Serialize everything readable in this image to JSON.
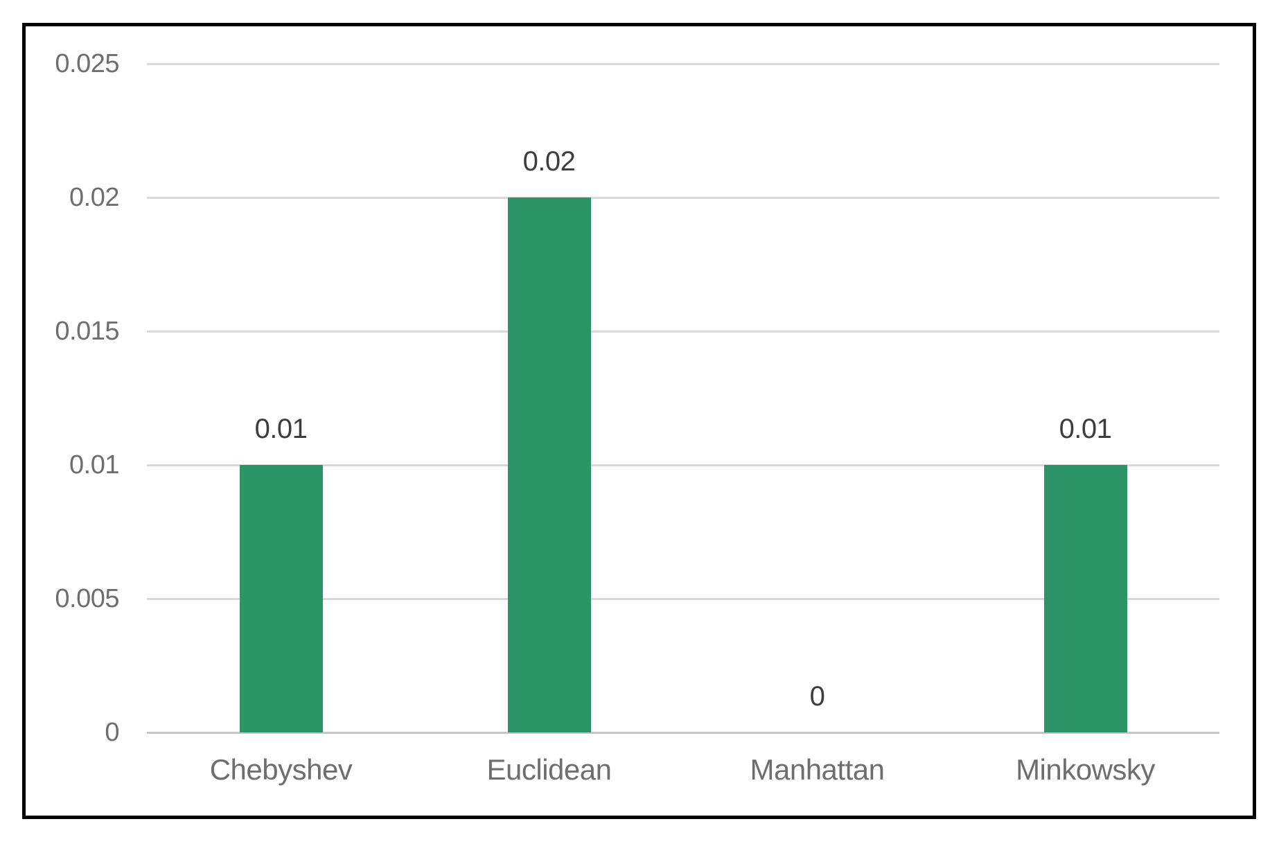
{
  "chart_data": {
    "type": "bar",
    "categories": [
      "Chebyshev",
      "Euclidean",
      "Manhattan",
      "Minkowsky"
    ],
    "values": [
      0.01,
      0.02,
      0,
      0.01
    ],
    "data_labels": [
      "0.01",
      "0.02",
      "0",
      "0.01"
    ],
    "ytick_labels": [
      "0.025",
      "0.02",
      "0.015",
      "0.01",
      "0.005",
      "0"
    ],
    "yticks": [
      0.025,
      0.02,
      0.015,
      0.01,
      0.005,
      0
    ],
    "ylim": [
      0,
      0.025
    ],
    "title": "",
    "xlabel": "",
    "ylabel": "",
    "grid": true,
    "legend_position": "none",
    "bar_color": "#2D9468",
    "gridline_color": "#d9d9d9",
    "axis_line_color": "#c6c6c6",
    "axis_label_color": "#6e6e6e",
    "data_label_color": "#3d3d3d",
    "frame_border_color": "#000000",
    "background_color": "#ffffff"
  }
}
